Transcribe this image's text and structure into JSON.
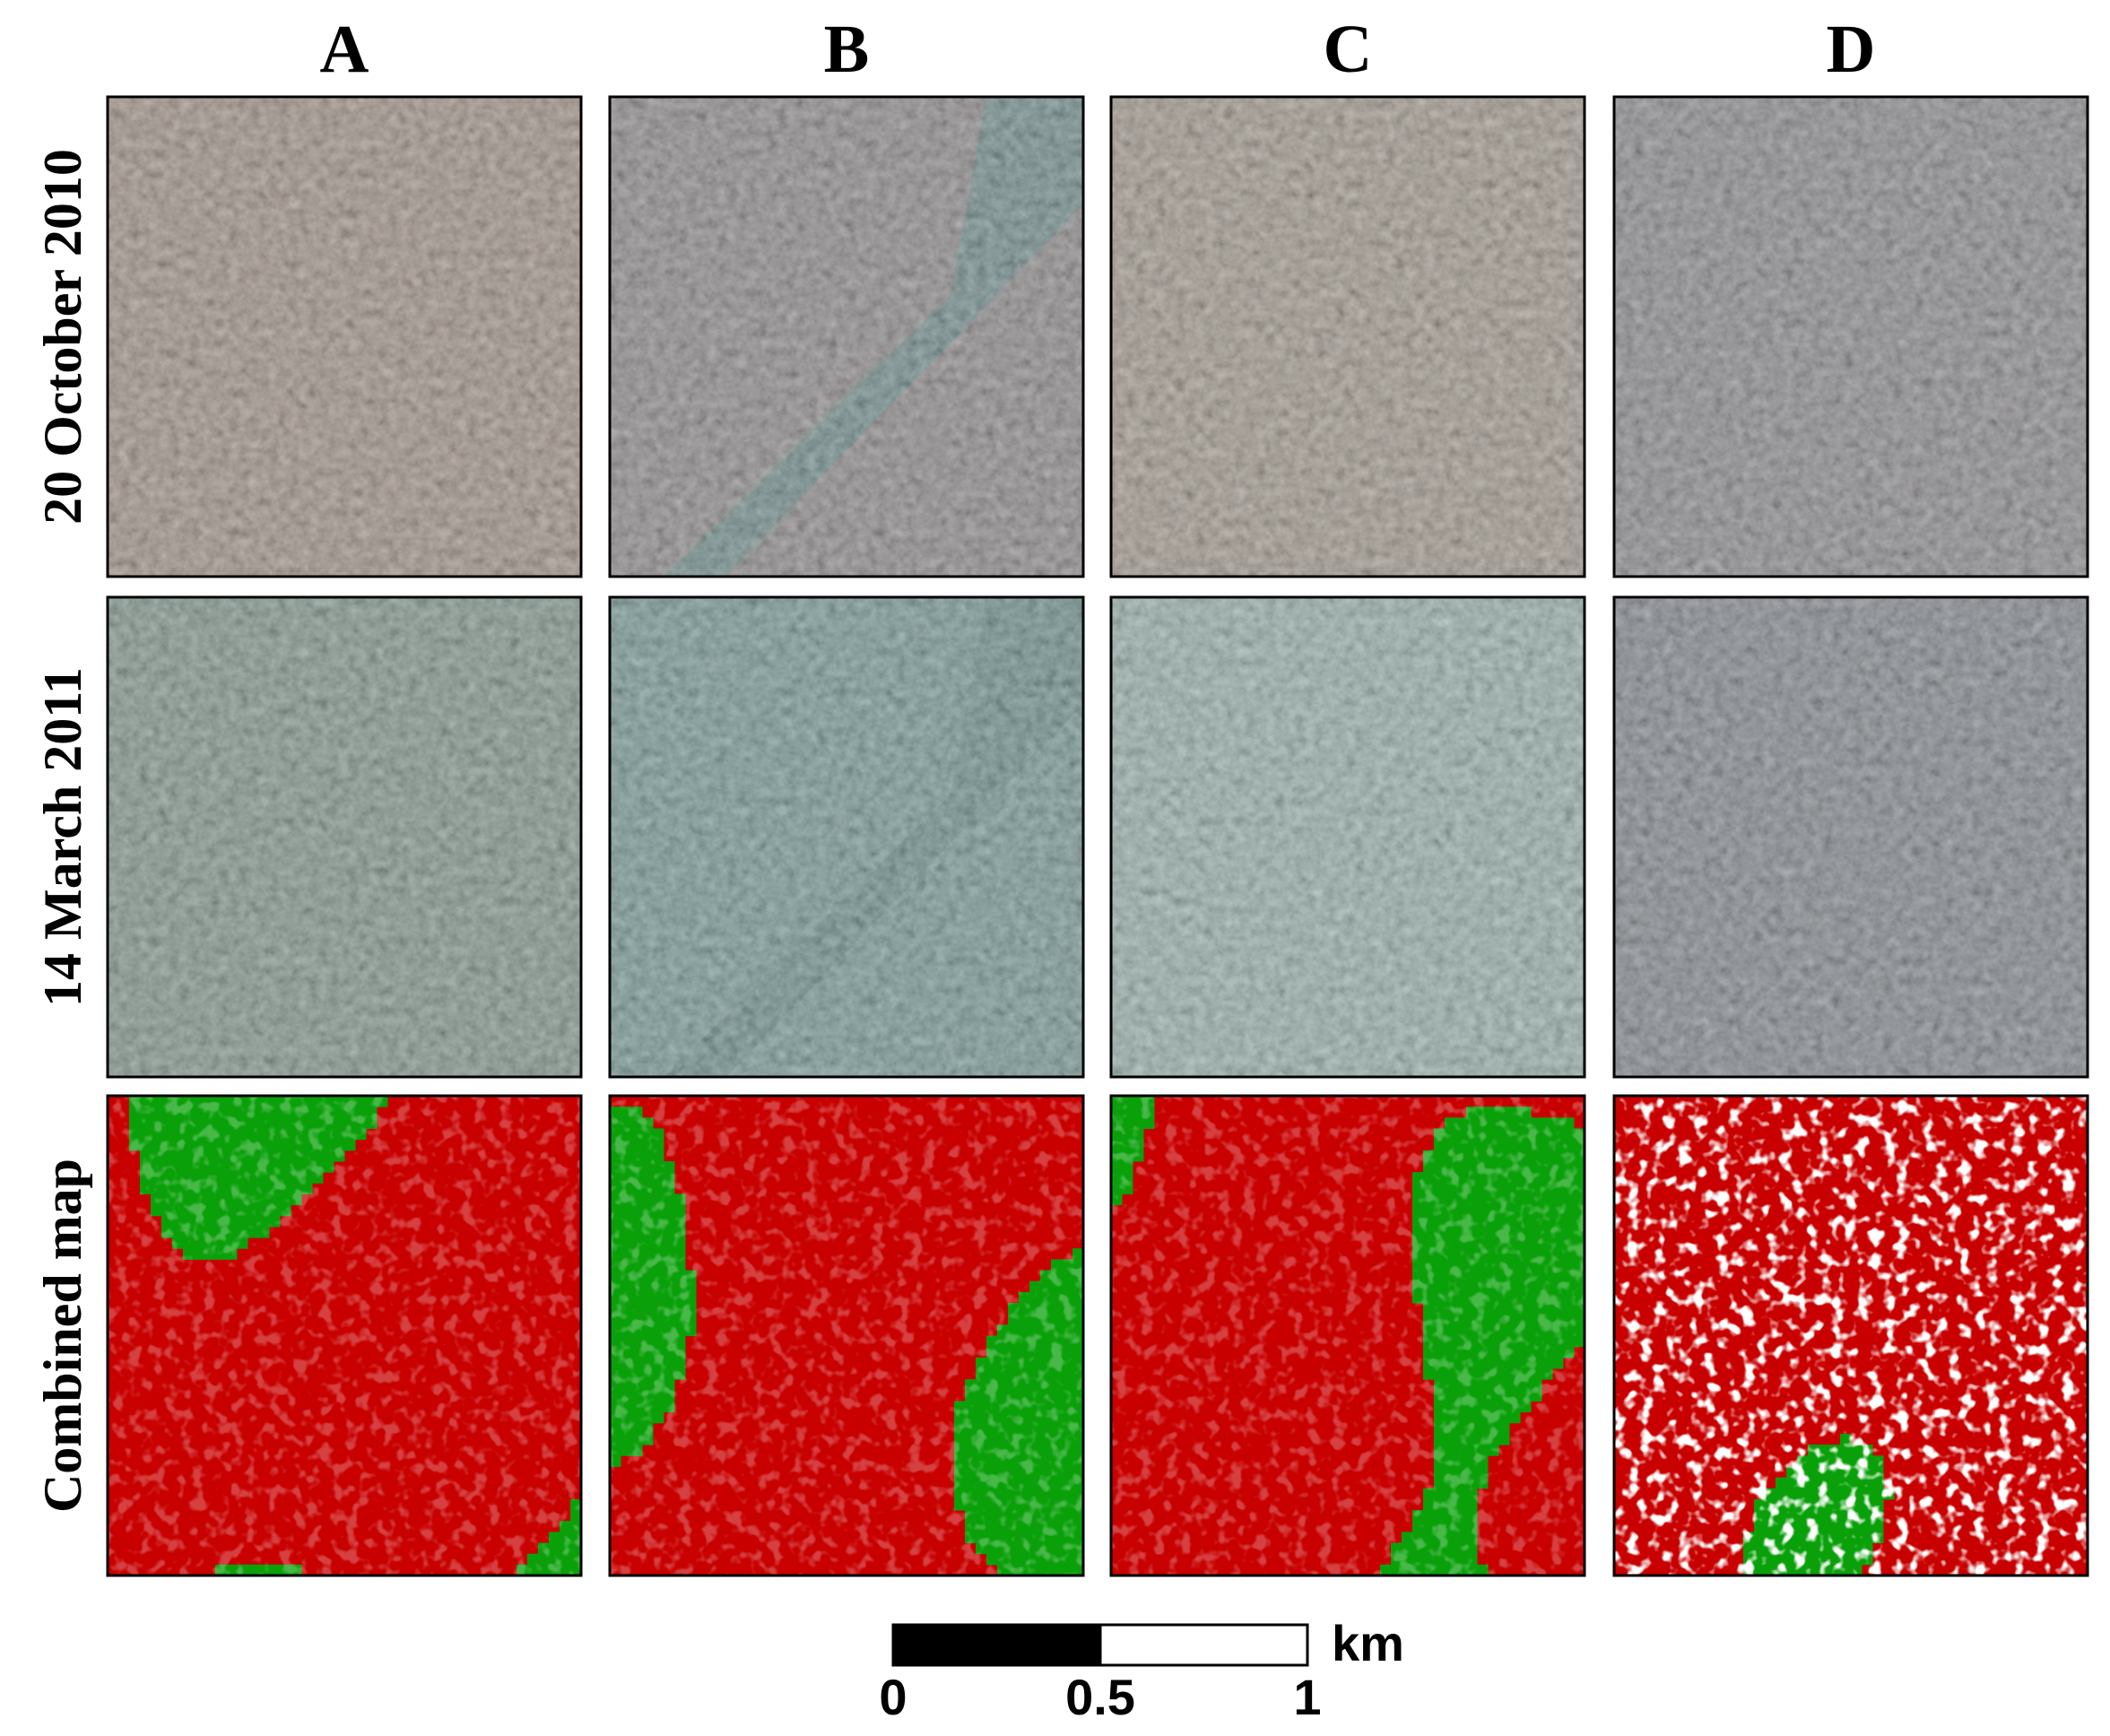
{
  "columns": [
    "A",
    "B",
    "C",
    "D"
  ],
  "rows": [
    "20 October 2010",
    "14 March 2011",
    "Combined map"
  ],
  "scale_bar": {
    "ticks": [
      0,
      0.5,
      1
    ],
    "unit": "km"
  }
}
